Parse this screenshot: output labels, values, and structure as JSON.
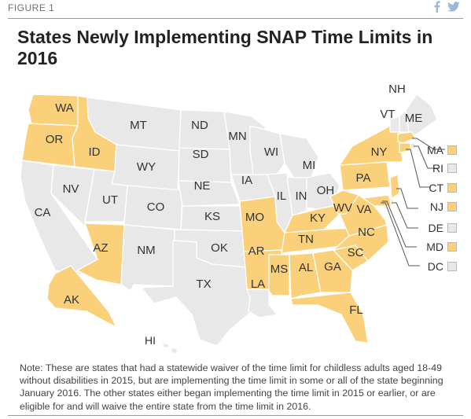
{
  "figure_label": "FIGURE 1",
  "title": "States Newly Implementing SNAP Time Limits in 2016",
  "share_icons": [
    "facebook-icon",
    "twitter-icon"
  ],
  "colors": {
    "highlight": "#fbd07a",
    "base": "#e8e8e8",
    "border": "#ffffff"
  },
  "map": {
    "highlighted_states": [
      "WA",
      "OR",
      "ID",
      "AZ",
      "MO",
      "AR",
      "KY",
      "TN",
      "MS",
      "AL",
      "GA",
      "SC",
      "NC",
      "WV",
      "VA",
      "PA",
      "NY",
      "FL",
      "AK",
      "MA",
      "CT",
      "NJ",
      "MD"
    ],
    "labels": {
      "WA": "WA",
      "OR": "OR",
      "ID": "ID",
      "MT": "MT",
      "WY": "WY",
      "CA": "CA",
      "NV": "NV",
      "UT": "UT",
      "CO": "CO",
      "AZ": "AZ",
      "NM": "NM",
      "ND": "ND",
      "SD": "SD",
      "NE": "NE",
      "KS": "KS",
      "OK": "OK",
      "TX": "TX",
      "MN": "MN",
      "IA": "IA",
      "MO": "MO",
      "AR": "AR",
      "LA": "LA",
      "WI": "WI",
      "IL": "IL",
      "MI": "MI",
      "IN": "IN",
      "OH": "OH",
      "KY": "KY",
      "TN": "TN",
      "MS": "MS",
      "AL": "AL",
      "GA": "GA",
      "FL": "FL",
      "SC": "SC",
      "NC": "NC",
      "VA": "VA",
      "WV": "WV",
      "PA": "PA",
      "NY": "NY",
      "VT": "VT",
      "NH": "NH",
      "ME": "ME",
      "AK": "AK",
      "HI": "HI"
    }
  },
  "legend": [
    {
      "code": "MA",
      "highlighted": true
    },
    {
      "code": "RI",
      "highlighted": false
    },
    {
      "code": "CT",
      "highlighted": true
    },
    {
      "code": "NJ",
      "highlighted": true
    },
    {
      "code": "DE",
      "highlighted": false
    },
    {
      "code": "MD",
      "highlighted": true
    },
    {
      "code": "DC",
      "highlighted": false
    }
  ],
  "note": "Note: These are states that had a statewide waiver of the time limit for childless adults aged 18-49 without disabilities in 2015, but are implementing the time limit in some or all of the state beginning January 2016. The other states either began implementing the time limit in 2015 or earlier, or are eligible for and will waive the entire state from the time limit in 2016."
}
